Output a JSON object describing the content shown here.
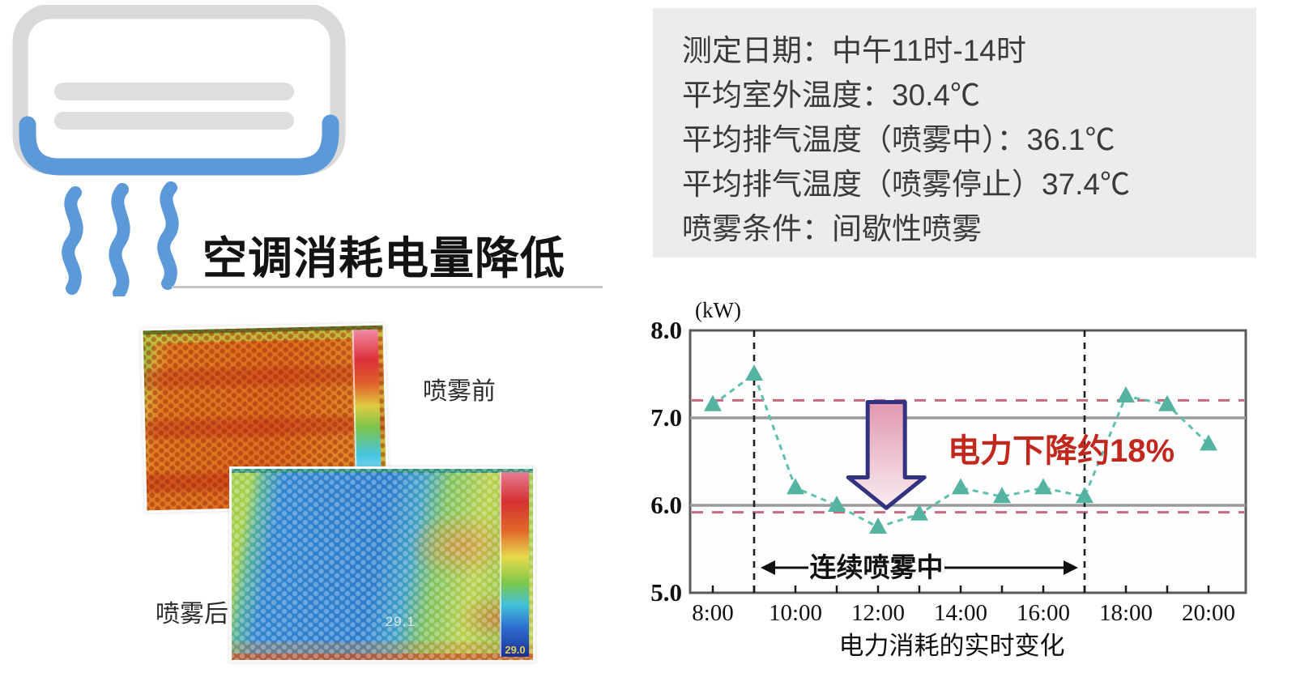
{
  "page": {
    "background": "#ffffff"
  },
  "hero": {
    "title": "空调消耗电量降低",
    "icon": "air-conditioner-with-airflow",
    "accent_blue": "#5b99d8",
    "icon_gray": "#d9d9d9"
  },
  "info_box": {
    "background": "#ececec",
    "lines": [
      "测定日期：中午11时-14时",
      "平均室外温度：30.4℃",
      "平均排气温度（喷雾中）：36.1℃",
      "平均排气温度（喷雾停止）37.4℃",
      "喷雾条件：间歇性喷雾"
    ]
  },
  "thermal": {
    "before_label": "喷雾前",
    "after_label": "喷雾后",
    "after_spot_temp": "29.1",
    "after_colorbar_min": "29.0"
  },
  "chart_data": {
    "type": "line",
    "unit_label": "(kW)",
    "xlabel": "电力消耗的实时变化",
    "x_hours": [
      8,
      9,
      10,
      11,
      12,
      13,
      14,
      15,
      16,
      17,
      18,
      19,
      20
    ],
    "values_kw": [
      7.15,
      7.5,
      6.2,
      6.0,
      5.75,
      5.9,
      6.2,
      6.1,
      6.2,
      6.1,
      7.25,
      7.15,
      6.7
    ],
    "x_tick_labels": [
      "8:00",
      "10:00",
      "12:00",
      "14:00",
      "16:00",
      "18:00",
      "20:00"
    ],
    "x_tick_label_hours": [
      8,
      10,
      12,
      14,
      16,
      18,
      20
    ],
    "y_ticks": [
      "8.0",
      "7.0",
      "6.0",
      "5.0"
    ],
    "y_tick_values": [
      8,
      7,
      6,
      5
    ],
    "ylim": [
      5.0,
      8.0
    ],
    "solid_gridlines_kw": [
      7.0,
      6.0
    ],
    "dashed_ref_lines_kw": [
      7.2,
      5.92
    ],
    "spray_window_hours": [
      9,
      17
    ],
    "spray_label": "连续喷雾中",
    "annotation": "电力下降约18%",
    "annotation_color": "#c1271d",
    "series_color": "#5fbfae",
    "marker_color": "#55b3a2",
    "ref_dash_color": "#c4697e",
    "grid_color": "#9a9a9a",
    "border_color": "#5a5a5a",
    "arrow_border_color": "#32327e",
    "arrow_fill_top": "#e098ae",
    "arrow_fill_bottom": "#f9edf0",
    "legend": "none",
    "grid": "partial-horizontal"
  }
}
